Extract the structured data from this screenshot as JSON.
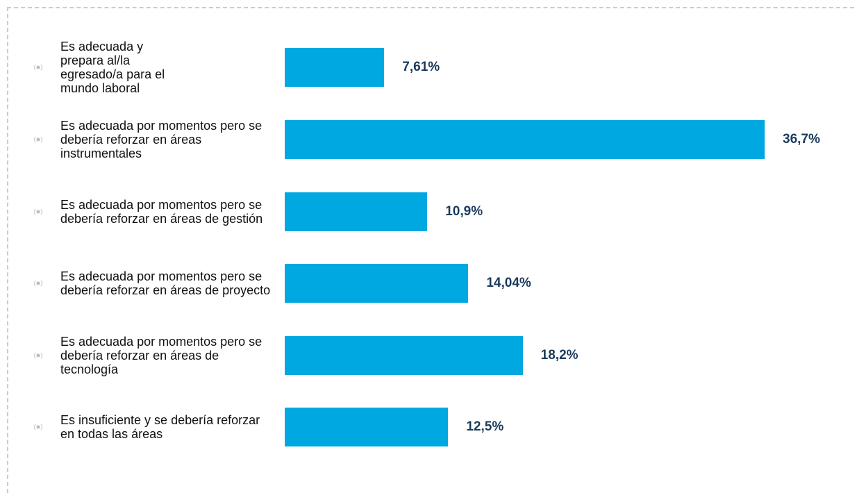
{
  "chart_data": {
    "type": "bar",
    "orientation": "horizontal",
    "categories": [
      "Es adecuada y prepara al/la egresado/a para el mundo laboral",
      "Es adecuada por momentos pero se debería reforzar en áreas instrumentales",
      "Es adecuada por momentos pero se debería reforzar en áreas de gestión",
      "Es adecuada por momentos pero se debería reforzar en áreas de proyecto",
      "Es adecuada por momentos pero se debería reforzar en áreas de tecnología",
      "Es insuficiente y se debería reforzar en todas las áreas"
    ],
    "values": [
      7.61,
      36.7,
      10.9,
      14.04,
      18.2,
      12.5
    ],
    "value_labels": [
      "7,61%",
      "36,7%",
      "10,9%",
      "14,04%",
      "18,2%",
      "12,5%"
    ],
    "color": "#00a8e1"
  }
}
